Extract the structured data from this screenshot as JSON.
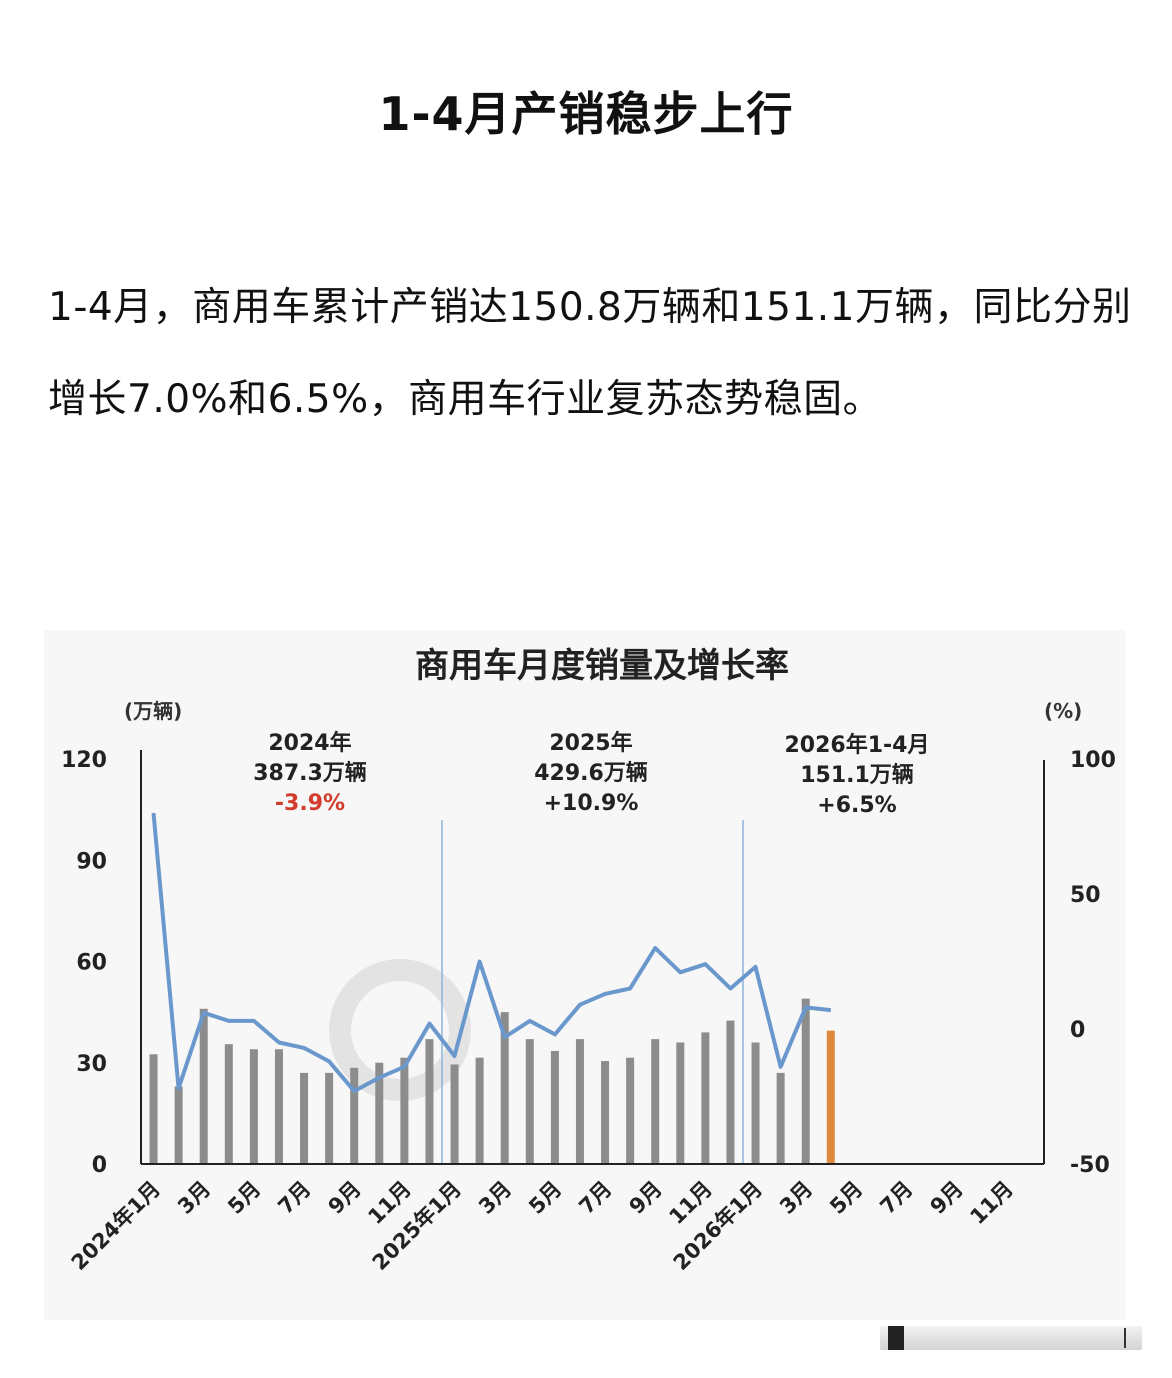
{
  "article": {
    "title": "1-4月产销稳步上行",
    "body": "1-4月，商用车累计产销达150.8万辆和151.1万辆，同比分别增长7.0%和6.5%，商用车行业复苏态势稳固。"
  },
  "chart_data": {
    "type": "bar+line",
    "title": "商用车月度销量及增长率",
    "y_left_label": "(万辆)",
    "y_right_label": "(%)",
    "y_left_ticks": [
      "120",
      "90",
      "60",
      "30",
      "0"
    ],
    "y_right_ticks": [
      "100",
      "50",
      "0",
      "-50"
    ],
    "y_left_range": [
      0,
      120
    ],
    "y_right_range": [
      -50,
      100
    ],
    "x_tick_labels": [
      {
        "index": 0,
        "label": "2024年1月"
      },
      {
        "index": 2,
        "label": "3月"
      },
      {
        "index": 4,
        "label": "5月"
      },
      {
        "index": 6,
        "label": "7月"
      },
      {
        "index": 8,
        "label": "9月"
      },
      {
        "index": 10,
        "label": "11月"
      },
      {
        "index": 12,
        "label": "2025年1月"
      },
      {
        "index": 14,
        "label": "3月"
      },
      {
        "index": 16,
        "label": "5月"
      },
      {
        "index": 18,
        "label": "7月"
      },
      {
        "index": 20,
        "label": "9月"
      },
      {
        "index": 22,
        "label": "11月"
      },
      {
        "index": 24,
        "label": "2026年1月"
      },
      {
        "index": 26,
        "label": "3月"
      },
      {
        "index": 28,
        "label": "5月"
      },
      {
        "index": 30,
        "label": "7月"
      },
      {
        "index": 32,
        "label": "9月"
      },
      {
        "index": 34,
        "label": "11月"
      }
    ],
    "total_months": 36,
    "sales": [
      32.5,
      23,
      46,
      35.5,
      34,
      34,
      27,
      27,
      28.5,
      30,
      31.5,
      37,
      29.5,
      31.5,
      45,
      37,
      33.5,
      37,
      30.5,
      31.5,
      37,
      36,
      39,
      42.5,
      36,
      27,
      49,
      39.5
    ],
    "growth_rate": [
      80,
      -22,
      6,
      3,
      3,
      -5,
      -7,
      -12,
      -23,
      -18,
      -14,
      2,
      -10,
      25,
      -3,
      3,
      -2,
      9,
      13,
      15,
      30,
      21,
      24,
      15,
      23,
      -14,
      8,
      7
    ],
    "highlight_index": 27,
    "bar_color": "#8c8c8c",
    "highlight_color": "#e0883e",
    "line_color": "#6a97cc",
    "negative_color": "#d23c2c",
    "separators_after_index": [
      11,
      23
    ],
    "annotations": [
      {
        "period": "2024年",
        "total": "387.3万辆",
        "change": "-3.9%",
        "negative": true
      },
      {
        "period": "2025年",
        "total": "429.6万辆",
        "change": "+10.9%",
        "negative": false
      },
      {
        "period": "2026年1-4月",
        "total": "151.1万辆",
        "change": "+6.5%",
        "negative": false
      }
    ],
    "grid": false,
    "legend": "none"
  }
}
